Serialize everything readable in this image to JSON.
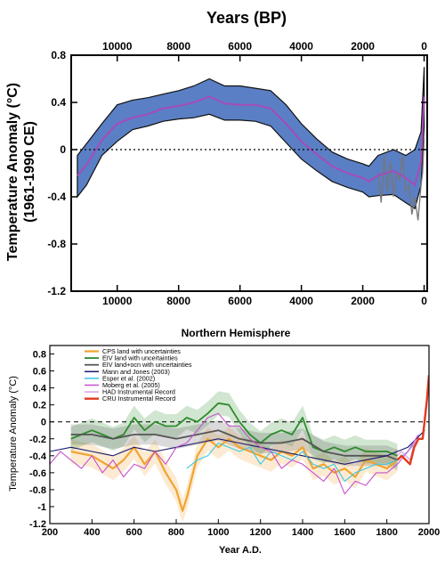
{
  "chart_data": [
    {
      "type": "area",
      "top_xlabel": "Years (BP)",
      "bottom_xlabel": "Northern Hemisphere",
      "ylabel_line1": "Temperature Anomaly (°C)",
      "ylabel_line2": "(1961-1990 CE)",
      "xlim": [
        11500,
        -100
      ],
      "ylim": [
        -1.2,
        0.8
      ],
      "x_ticks": [
        10000,
        8000,
        6000,
        4000,
        2000,
        0
      ],
      "y_ticks": [
        0.8,
        0.4,
        0,
        -0.4,
        -0.8,
        -1.2
      ],
      "y_tick_labels": [
        "0.8",
        "0.4",
        "0",
        "-0.4",
        "-0.8",
        "-1.2"
      ],
      "zero_line": "dotted",
      "colors": {
        "band": "#5a7fc4",
        "band_edge": "#111111",
        "mean": "#a64cb6",
        "instrumental": "#777777"
      },
      "series": [
        {
          "kind": "band",
          "x": [
            11300,
            11000,
            10500,
            10000,
            9500,
            9000,
            8500,
            8000,
            7500,
            7000,
            6500,
            6000,
            5500,
            5000,
            4500,
            4000,
            3500,
            3000,
            2500,
            2000,
            1800,
            1500,
            1000,
            600,
            300,
            100,
            0
          ],
          "upper": [
            -0.05,
            0.05,
            0.22,
            0.38,
            0.42,
            0.44,
            0.47,
            0.5,
            0.54,
            0.6,
            0.54,
            0.54,
            0.52,
            0.5,
            0.38,
            0.22,
            0.09,
            -0.02,
            -0.08,
            -0.12,
            -0.14,
            -0.05,
            0.0,
            -0.05,
            0.0,
            0.15,
            0.7
          ],
          "lower": [
            -0.4,
            -0.3,
            -0.05,
            0.07,
            0.17,
            0.2,
            0.24,
            0.26,
            0.27,
            0.3,
            0.25,
            0.25,
            0.24,
            0.2,
            0.06,
            -0.08,
            -0.18,
            -0.27,
            -0.32,
            -0.36,
            -0.4,
            -0.39,
            -0.38,
            -0.45,
            -0.5,
            -0.3,
            0.2
          ]
        },
        {
          "kind": "line",
          "x": [
            11300,
            11000,
            10500,
            10000,
            9500,
            9000,
            8500,
            8000,
            7500,
            7000,
            6500,
            6000,
            5500,
            5000,
            4500,
            4000,
            3500,
            3000,
            2500,
            2000,
            1800,
            1500,
            1000,
            600,
            300,
            100,
            0
          ],
          "y": [
            -0.22,
            -0.13,
            0.08,
            0.22,
            0.27,
            0.3,
            0.35,
            0.37,
            0.4,
            0.45,
            0.39,
            0.38,
            0.38,
            0.35,
            0.22,
            0.07,
            -0.04,
            -0.14,
            -0.2,
            -0.24,
            -0.27,
            -0.22,
            -0.18,
            -0.24,
            -0.3,
            -0.1,
            0.45
          ]
        },
        {
          "kind": "line",
          "x": [
            1500,
            1400,
            1300,
            1200,
            1100,
            1000,
            900,
            800,
            700,
            600,
            500,
            400,
            300,
            200,
            100,
            50,
            0
          ],
          "y": [
            -0.2,
            -0.45,
            -0.05,
            -0.35,
            -0.1,
            -0.4,
            -0.2,
            -0.25,
            -0.05,
            -0.35,
            -0.3,
            -0.55,
            -0.4,
            -0.6,
            -0.3,
            -0.2,
            0.1
          ]
        }
      ]
    },
    {
      "type": "line",
      "xlabel": "Year A.D.",
      "ylabel": "Temperature Anomaly (°C)",
      "xlim": [
        200,
        2000
      ],
      "ylim": [
        -1.2,
        0.9
      ],
      "x_ticks": [
        200,
        400,
        600,
        800,
        1000,
        1200,
        1400,
        1600,
        1800,
        2000
      ],
      "y_ticks": [
        0.8,
        0.6,
        0.4,
        0.2,
        0,
        -0.2,
        -0.4,
        -0.6,
        -0.8,
        -1,
        -1.2
      ],
      "y_tick_labels": [
        "0.8",
        "0.6",
        "0.4",
        "0.2",
        "0",
        "-0.2",
        "-0.4",
        "-0.6",
        "-0.8",
        "-1",
        "-1.2"
      ],
      "zero_line": "dashed",
      "legend_position": "top-left",
      "series": [
        {
          "name": "CPS land with uncertainties",
          "color": "#f0a430",
          "width": 2.2,
          "band": 0.14,
          "x": [
            300,
            400,
            500,
            550,
            600,
            650,
            700,
            750,
            800,
            830,
            850,
            900,
            950,
            1000,
            1050,
            1100,
            1150,
            1200,
            1250,
            1300,
            1350,
            1400,
            1450,
            1500,
            1550,
            1600,
            1650,
            1700,
            1750,
            1800,
            1850
          ],
          "y": [
            -0.35,
            -0.4,
            -0.55,
            -0.45,
            -0.3,
            -0.5,
            -0.35,
            -0.6,
            -0.8,
            -1.05,
            -0.9,
            -0.4,
            -0.2,
            -0.3,
            -0.2,
            -0.3,
            -0.35,
            -0.4,
            -0.45,
            -0.35,
            -0.4,
            -0.3,
            -0.55,
            -0.5,
            -0.6,
            -0.55,
            -0.65,
            -0.45,
            -0.5,
            -0.55,
            -0.45
          ]
        },
        {
          "name": "EIV land with uncertainties",
          "color": "#2e8b2e",
          "width": 1.8,
          "band": 0.14,
          "x": [
            300,
            350,
            400,
            450,
            500,
            550,
            600,
            650,
            700,
            750,
            800,
            850,
            900,
            950,
            1000,
            1050,
            1100,
            1150,
            1200,
            1250,
            1300,
            1350,
            1400,
            1450,
            1500,
            1550,
            1600,
            1650,
            1700,
            1750,
            1800,
            1850
          ],
          "y": [
            -0.2,
            -0.15,
            -0.1,
            -0.15,
            -0.2,
            -0.15,
            0.05,
            -0.1,
            0.0,
            -0.05,
            -0.05,
            0.05,
            0.0,
            0.1,
            0.22,
            0.2,
            0.0,
            -0.15,
            -0.25,
            -0.15,
            -0.1,
            -0.15,
            0.05,
            -0.3,
            -0.35,
            -0.3,
            -0.35,
            -0.3,
            -0.35,
            -0.35,
            -0.35,
            -0.4
          ]
        },
        {
          "name": "EIV land+ocn with uncertainties",
          "color": "#555555",
          "width": 1.8,
          "band": 0.12,
          "x": [
            300,
            400,
            500,
            600,
            700,
            800,
            900,
            1000,
            1100,
            1200,
            1300,
            1400,
            1500,
            1600,
            1700,
            1800,
            1850
          ],
          "y": [
            -0.15,
            -0.15,
            -0.2,
            -0.15,
            -0.15,
            -0.2,
            -0.15,
            -0.1,
            -0.2,
            -0.25,
            -0.25,
            -0.2,
            -0.35,
            -0.4,
            -0.4,
            -0.4,
            -0.45
          ]
        },
        {
          "name": "Mann and Jones (2003)",
          "color": "#1a1a6e",
          "width": 1.1,
          "x": [
            200,
            300,
            400,
            500,
            600,
            700,
            800,
            900,
            1000,
            1100,
            1200,
            1300,
            1400,
            1500,
            1600,
            1700,
            1800,
            1900,
            1980
          ],
          "y": [
            -0.35,
            -0.3,
            -0.35,
            -0.4,
            -0.3,
            -0.35,
            -0.3,
            -0.25,
            -0.2,
            -0.25,
            -0.3,
            -0.35,
            -0.4,
            -0.45,
            -0.5,
            -0.45,
            -0.4,
            -0.3,
            -0.1
          ]
        },
        {
          "name": "Esper et al. (2002)",
          "color": "#38c8e8",
          "width": 1.1,
          "x": [
            850,
            900,
            950,
            1000,
            1050,
            1100,
            1150,
            1200,
            1250,
            1300,
            1350,
            1400,
            1450,
            1500,
            1550,
            1600,
            1650,
            1700,
            1750,
            1800,
            1850,
            1900,
            1950
          ],
          "y": [
            -0.55,
            -0.45,
            -0.4,
            -0.25,
            -0.3,
            -0.35,
            -0.3,
            -0.5,
            -0.35,
            -0.4,
            -0.45,
            -0.35,
            -0.5,
            -0.55,
            -0.5,
            -0.7,
            -0.6,
            -0.55,
            -0.5,
            -0.5,
            -0.45,
            -0.35,
            -0.2
          ]
        },
        {
          "name": "Moberg et al. (2005)",
          "color": "#c84fd0",
          "width": 1.1,
          "x": [
            200,
            250,
            300,
            350,
            400,
            450,
            500,
            550,
            600,
            650,
            700,
            750,
            800,
            850,
            900,
            950,
            1000,
            1050,
            1100,
            1150,
            1200,
            1250,
            1300,
            1350,
            1400,
            1450,
            1500,
            1550,
            1600,
            1650,
            1700,
            1750,
            1800,
            1850,
            1900,
            1950
          ],
          "y": [
            -0.5,
            -0.35,
            -0.45,
            -0.55,
            -0.4,
            -0.6,
            -0.45,
            -0.65,
            -0.5,
            -0.55,
            -0.35,
            -0.5,
            -0.3,
            -0.25,
            -0.1,
            0.05,
            0.1,
            -0.05,
            -0.05,
            -0.2,
            -0.3,
            -0.35,
            -0.55,
            -0.45,
            -0.5,
            -0.6,
            -0.7,
            -0.55,
            -0.85,
            -0.7,
            -0.75,
            -0.6,
            -0.6,
            -0.5,
            -0.35,
            -0.15
          ]
        },
        {
          "name": "HAD Instrumental Record",
          "color": "#d8a0e0",
          "width": 1.2,
          "x": [
            1850,
            1870,
            1890,
            1910,
            1930,
            1950,
            1970,
            1990,
            2000
          ],
          "y": [
            -0.4,
            -0.35,
            -0.4,
            -0.45,
            -0.25,
            -0.2,
            -0.2,
            0.2,
            0.45
          ]
        },
        {
          "name": "CRU Instrumental Record",
          "color": "#e23a1e",
          "width": 2.4,
          "x": [
            1850,
            1870,
            1890,
            1910,
            1930,
            1950,
            1970,
            1990,
            2000
          ],
          "y": [
            -0.45,
            -0.4,
            -0.45,
            -0.5,
            -0.3,
            -0.2,
            -0.2,
            0.25,
            0.55
          ]
        }
      ]
    }
  ]
}
